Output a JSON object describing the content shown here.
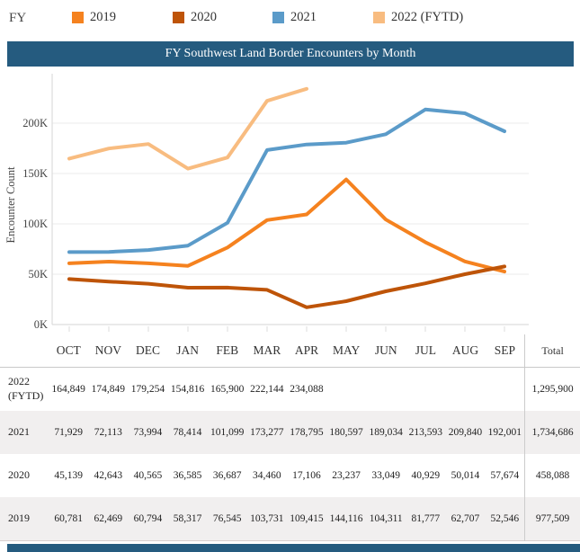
{
  "legend": {
    "label": "FY",
    "items": [
      {
        "label": "2019",
        "color": "#F5821F"
      },
      {
        "label": "2020",
        "color": "#BE5408"
      },
      {
        "label": "2021",
        "color": "#5B9BC9"
      },
      {
        "label": "2022 (FYTD)",
        "color": "#F8BC80"
      }
    ]
  },
  "title_bar": {
    "text": "FY Southwest Land Border Encounters by Month",
    "color": "#255B7F"
  },
  "chart_data": {
    "type": "line",
    "title": "FY Southwest Land Border Encounters by Month",
    "xlabel": "",
    "ylabel": "Encounter Count",
    "categories": [
      "OCT",
      "NOV",
      "DEC",
      "JAN",
      "FEB",
      "MAR",
      "APR",
      "MAY",
      "JUN",
      "JUL",
      "AUG",
      "SEP"
    ],
    "ytick_labels": [
      "0K",
      "50K",
      "100K",
      "150K",
      "200K"
    ],
    "ytick_values": [
      0,
      50000,
      100000,
      150000,
      200000
    ],
    "ylim": [
      0,
      240000
    ],
    "grid": true,
    "legend_position": "top",
    "series": [
      {
        "name": "2021",
        "color": "#5B9BC9",
        "values": [
          71929,
          72113,
          73994,
          78414,
          101099,
          173277,
          178795,
          180597,
          189034,
          213593,
          209840,
          192001
        ]
      },
      {
        "name": "2019",
        "color": "#F5821F",
        "values": [
          60781,
          62469,
          60794,
          58317,
          76545,
          103731,
          109415,
          144116,
          104311,
          81777,
          62707,
          52546
        ]
      },
      {
        "name": "2020",
        "color": "#BE5408",
        "values": [
          45139,
          42643,
          40565,
          36585,
          36687,
          34460,
          17106,
          23237,
          33049,
          40929,
          50014,
          57674
        ]
      },
      {
        "name": "2022 (FYTD)",
        "color": "#F8BC80",
        "values": [
          164849,
          174849,
          179254,
          154816,
          165900,
          222144,
          234088
        ]
      }
    ]
  },
  "table": {
    "month_headers": [
      "OCT",
      "NOV",
      "DEC",
      "JAN",
      "FEB",
      "MAR",
      "APR",
      "MAY",
      "JUN",
      "JUL",
      "AUG",
      "SEP"
    ],
    "total_header": "Total",
    "rows": [
      {
        "label": "2022 (FYTD)",
        "values": [
          "164,849",
          "174,849",
          "179,254",
          "154,816",
          "165,900",
          "222,144",
          "234,088",
          "",
          "",
          "",
          "",
          ""
        ],
        "total": "1,295,900"
      },
      {
        "label": "2021",
        "values": [
          "71,929",
          "72,113",
          "73,994",
          "78,414",
          "101,099",
          "173,277",
          "178,795",
          "180,597",
          "189,034",
          "213,593",
          "209,840",
          "192,001"
        ],
        "total": "1,734,686"
      },
      {
        "label": "2020",
        "values": [
          "45,139",
          "42,643",
          "40,565",
          "36,585",
          "36,687",
          "34,460",
          "17,106",
          "23,237",
          "33,049",
          "40,929",
          "50,014",
          "57,674"
        ],
        "total": "458,088"
      },
      {
        "label": "2019",
        "values": [
          "60,781",
          "62,469",
          "60,794",
          "58,317",
          "76,545",
          "103,731",
          "109,415",
          "144,116",
          "104,311",
          "81,777",
          "62,707",
          "52,546"
        ],
        "total": "977,509"
      }
    ]
  }
}
